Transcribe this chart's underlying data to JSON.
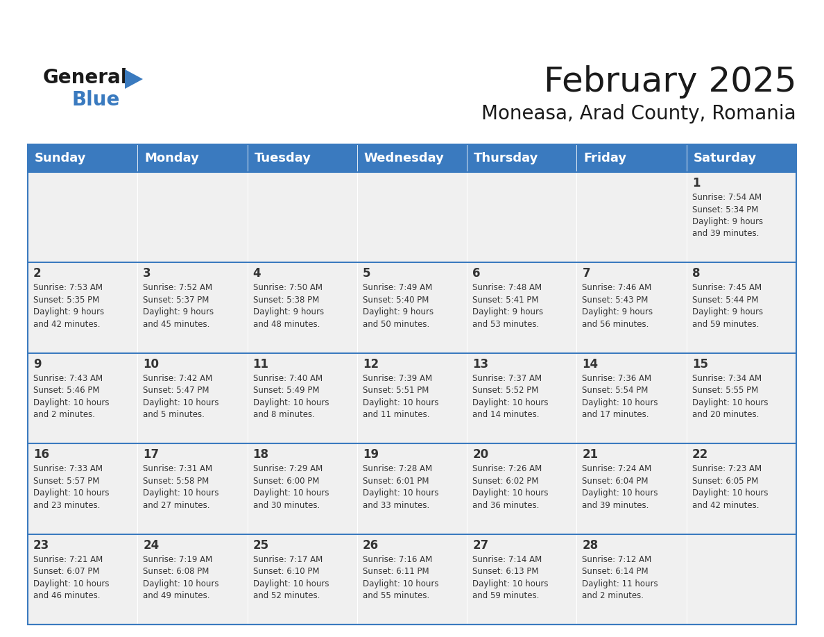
{
  "title": "February 2025",
  "subtitle": "Moneasa, Arad County, Romania",
  "header_color": "#3a7abf",
  "header_text_color": "#ffffff",
  "cell_bg_color": "#f0f0f0",
  "border_color": "#3a7abf",
  "days_of_week": [
    "Sunday",
    "Monday",
    "Tuesday",
    "Wednesday",
    "Thursday",
    "Friday",
    "Saturday"
  ],
  "calendar_data": [
    [
      null,
      null,
      null,
      null,
      null,
      null,
      {
        "day": 1,
        "sunrise": "7:54 AM",
        "sunset": "5:34 PM",
        "daylight": "9 hours\nand 39 minutes."
      }
    ],
    [
      {
        "day": 2,
        "sunrise": "7:53 AM",
        "sunset": "5:35 PM",
        "daylight": "9 hours\nand 42 minutes."
      },
      {
        "day": 3,
        "sunrise": "7:52 AM",
        "sunset": "5:37 PM",
        "daylight": "9 hours\nand 45 minutes."
      },
      {
        "day": 4,
        "sunrise": "7:50 AM",
        "sunset": "5:38 PM",
        "daylight": "9 hours\nand 48 minutes."
      },
      {
        "day": 5,
        "sunrise": "7:49 AM",
        "sunset": "5:40 PM",
        "daylight": "9 hours\nand 50 minutes."
      },
      {
        "day": 6,
        "sunrise": "7:48 AM",
        "sunset": "5:41 PM",
        "daylight": "9 hours\nand 53 minutes."
      },
      {
        "day": 7,
        "sunrise": "7:46 AM",
        "sunset": "5:43 PM",
        "daylight": "9 hours\nand 56 minutes."
      },
      {
        "day": 8,
        "sunrise": "7:45 AM",
        "sunset": "5:44 PM",
        "daylight": "9 hours\nand 59 minutes."
      }
    ],
    [
      {
        "day": 9,
        "sunrise": "7:43 AM",
        "sunset": "5:46 PM",
        "daylight": "10 hours\nand 2 minutes."
      },
      {
        "day": 10,
        "sunrise": "7:42 AM",
        "sunset": "5:47 PM",
        "daylight": "10 hours\nand 5 minutes."
      },
      {
        "day": 11,
        "sunrise": "7:40 AM",
        "sunset": "5:49 PM",
        "daylight": "10 hours\nand 8 minutes."
      },
      {
        "day": 12,
        "sunrise": "7:39 AM",
        "sunset": "5:51 PM",
        "daylight": "10 hours\nand 11 minutes."
      },
      {
        "day": 13,
        "sunrise": "7:37 AM",
        "sunset": "5:52 PM",
        "daylight": "10 hours\nand 14 minutes."
      },
      {
        "day": 14,
        "sunrise": "7:36 AM",
        "sunset": "5:54 PM",
        "daylight": "10 hours\nand 17 minutes."
      },
      {
        "day": 15,
        "sunrise": "7:34 AM",
        "sunset": "5:55 PM",
        "daylight": "10 hours\nand 20 minutes."
      }
    ],
    [
      {
        "day": 16,
        "sunrise": "7:33 AM",
        "sunset": "5:57 PM",
        "daylight": "10 hours\nand 23 minutes."
      },
      {
        "day": 17,
        "sunrise": "7:31 AM",
        "sunset": "5:58 PM",
        "daylight": "10 hours\nand 27 minutes."
      },
      {
        "day": 18,
        "sunrise": "7:29 AM",
        "sunset": "6:00 PM",
        "daylight": "10 hours\nand 30 minutes."
      },
      {
        "day": 19,
        "sunrise": "7:28 AM",
        "sunset": "6:01 PM",
        "daylight": "10 hours\nand 33 minutes."
      },
      {
        "day": 20,
        "sunrise": "7:26 AM",
        "sunset": "6:02 PM",
        "daylight": "10 hours\nand 36 minutes."
      },
      {
        "day": 21,
        "sunrise": "7:24 AM",
        "sunset": "6:04 PM",
        "daylight": "10 hours\nand 39 minutes."
      },
      {
        "day": 22,
        "sunrise": "7:23 AM",
        "sunset": "6:05 PM",
        "daylight": "10 hours\nand 42 minutes."
      }
    ],
    [
      {
        "day": 23,
        "sunrise": "7:21 AM",
        "sunset": "6:07 PM",
        "daylight": "10 hours\nand 46 minutes."
      },
      {
        "day": 24,
        "sunrise": "7:19 AM",
        "sunset": "6:08 PM",
        "daylight": "10 hours\nand 49 minutes."
      },
      {
        "day": 25,
        "sunrise": "7:17 AM",
        "sunset": "6:10 PM",
        "daylight": "10 hours\nand 52 minutes."
      },
      {
        "day": 26,
        "sunrise": "7:16 AM",
        "sunset": "6:11 PM",
        "daylight": "10 hours\nand 55 minutes."
      },
      {
        "day": 27,
        "sunrise": "7:14 AM",
        "sunset": "6:13 PM",
        "daylight": "10 hours\nand 59 minutes."
      },
      {
        "day": 28,
        "sunrise": "7:12 AM",
        "sunset": "6:14 PM",
        "daylight": "11 hours\nand 2 minutes."
      },
      null
    ]
  ],
  "num_rows": 5,
  "num_cols": 7,
  "logo_text_general": "General",
  "logo_text_blue": "Blue",
  "logo_color_general": "#1a1a1a",
  "logo_color_blue": "#3a7abf",
  "logo_triangle_color": "#3a7abf",
  "title_fontsize": 36,
  "subtitle_fontsize": 20,
  "header_fontsize": 13,
  "day_num_fontsize": 12,
  "cell_text_fontsize": 8.5,
  "text_color": "#333333"
}
